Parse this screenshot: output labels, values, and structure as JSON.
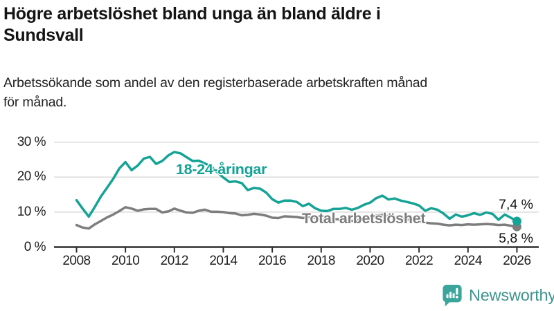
{
  "header": {
    "title_line1": "Högre arbetslöshet bland unga än bland äldre i",
    "title_line2": "Sundsvall",
    "subtitle_line1": "Arbetssökande som andel av den registerbaserade arbetskraften månad",
    "subtitle_line2": "för månad."
  },
  "branding": {
    "name": "Newsworthy",
    "icon": "newsworthy-chart-bubble-icon",
    "icon_color": "#3BA59B",
    "text_color": "#3E948D"
  },
  "colors": {
    "youth_line": "#15A395",
    "total_line": "#7D7D7D",
    "gridline": "#DADADA",
    "axis_line": "#2E2E2E",
    "text": "#141414"
  },
  "chart_data": {
    "type": "line",
    "unit": "%",
    "x_start_year": 2008,
    "x_step_years": 0.25,
    "xlim": [
      2008,
      2026
    ],
    "ylim": [
      0,
      32
    ],
    "grid": "horizontal",
    "legend_position": "inline-labels",
    "x_ticks": [
      {
        "value": 2008,
        "label": "2008"
      },
      {
        "value": 2010,
        "label": "2010"
      },
      {
        "value": 2012,
        "label": "2012"
      },
      {
        "value": 2014,
        "label": "2014"
      },
      {
        "value": 2016,
        "label": "2016"
      },
      {
        "value": 2018,
        "label": "2018"
      },
      {
        "value": 2020,
        "label": "2020"
      },
      {
        "value": 2022,
        "label": "2022"
      },
      {
        "value": 2024,
        "label": "2024"
      },
      {
        "value": 2026,
        "label": "2026"
      }
    ],
    "y_ticks": [
      {
        "value": 0,
        "label": "0 %"
      },
      {
        "value": 10,
        "label": "10 %"
      },
      {
        "value": 20,
        "label": "20 %"
      },
      {
        "value": 30,
        "label": "30 %"
      }
    ],
    "series": [
      {
        "id": "youth",
        "name": "18-24-åringar",
        "color": "#15A395",
        "end_label": "7,4 %",
        "end_value": 7.4,
        "values": [
          13.4,
          11.0,
          8.7,
          11.5,
          14.5,
          17.0,
          19.5,
          22.5,
          24.3,
          22.0,
          23.3,
          25.3,
          25.8,
          23.8,
          24.6,
          26.2,
          27.2,
          26.8,
          25.7,
          24.6,
          24.7,
          23.9,
          23.1,
          21.4,
          19.9,
          18.6,
          18.8,
          18.3,
          16.3,
          16.9,
          16.7,
          15.6,
          13.7,
          12.7,
          13.3,
          13.3,
          12.9,
          11.7,
          12.4,
          11.1,
          10.4,
          10.3,
          10.9,
          10.9,
          11.2,
          10.7,
          11.2,
          12.1,
          12.7,
          14.0,
          14.7,
          13.6,
          13.9,
          13.3,
          12.9,
          12.5,
          11.9,
          10.4,
          11.1,
          10.7,
          9.6,
          8.1,
          9.3,
          8.7,
          9.1,
          9.7,
          9.2,
          9.9,
          9.5,
          7.8,
          9.3,
          8.4,
          7.4
        ]
      },
      {
        "id": "total",
        "name": "Total arbetslöshet",
        "color": "#7D7D7D",
        "end_label": "5,8 %",
        "end_value": 5.8,
        "values": [
          6.3,
          5.6,
          5.3,
          6.5,
          7.5,
          8.5,
          9.3,
          10.3,
          11.4,
          11.0,
          10.4,
          10.8,
          10.9,
          10.9,
          9.9,
          10.2,
          11.0,
          10.4,
          9.9,
          9.8,
          10.4,
          10.7,
          10.1,
          10.1,
          10.0,
          9.7,
          9.6,
          9.1,
          9.2,
          9.5,
          9.3,
          9.0,
          8.4,
          8.3,
          8.8,
          8.7,
          8.6,
          8.3,
          8.6,
          8.3,
          7.9,
          7.7,
          8.0,
          7.9,
          7.7,
          7.5,
          7.7,
          7.9,
          8.3,
          9.0,
          9.2,
          8.8,
          8.7,
          8.3,
          7.9,
          7.6,
          7.3,
          7.0,
          6.8,
          6.7,
          6.4,
          6.2,
          6.4,
          6.3,
          6.5,
          6.4,
          6.5,
          6.6,
          6.5,
          6.3,
          6.4,
          6.1,
          5.8
        ]
      }
    ]
  }
}
